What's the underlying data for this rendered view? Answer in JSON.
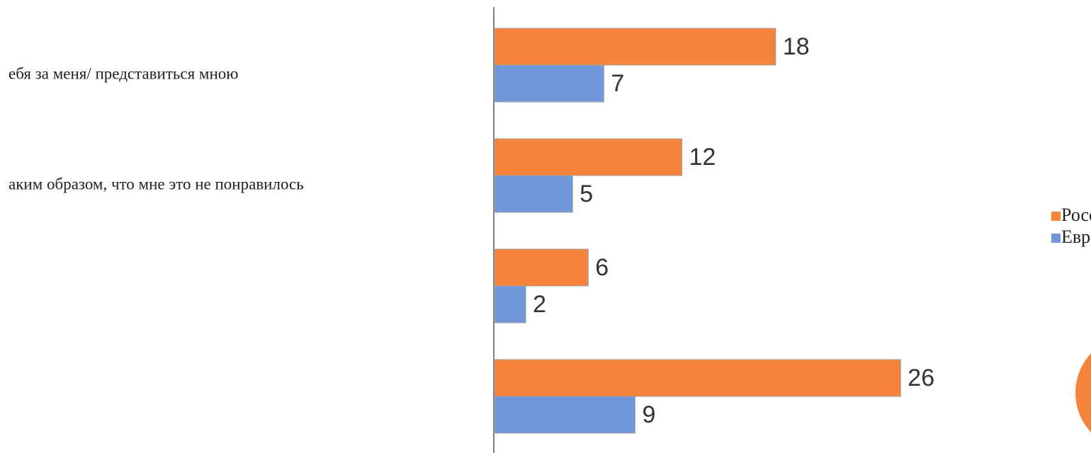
{
  "chart_data": {
    "type": "bar",
    "orientation": "horizontal",
    "categories": [
      "ебя за меня/ представиться мною",
      "аким образом, что мне это не понравилось",
      null,
      null
    ],
    "series": [
      {
        "name": "Россия",
        "color": "#f5843a",
        "values": [
          18,
          12,
          6,
          26
        ]
      },
      {
        "name": "Европа",
        "color": "#7097d8",
        "values": [
          7,
          5,
          2,
          9
        ]
      }
    ],
    "legend": "right"
  }
}
